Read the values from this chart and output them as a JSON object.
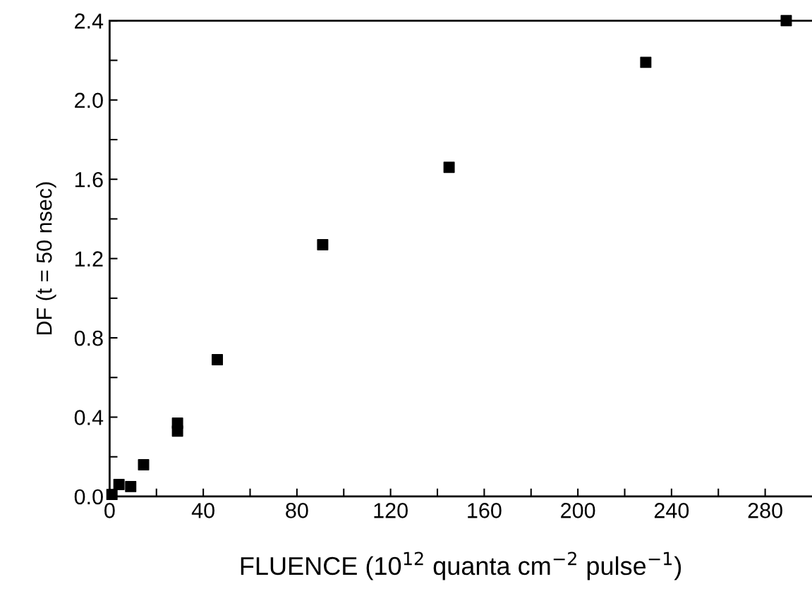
{
  "chart_data": {
    "type": "scatter",
    "xlabel": "FLUENCE (10$^{12}$ quanta cm$^{−2}$ pulse$^{−1}$)",
    "ylabel": "DF (t = 50 nsec)",
    "x": [
      1,
      4,
      9,
      14.5,
      29,
      29,
      46,
      91,
      145,
      229,
      289
    ],
    "values": [
      0.01,
      0.06,
      0.05,
      0.16,
      0.37,
      0.33,
      0.69,
      1.27,
      1.66,
      2.19,
      2.4
    ],
    "color": "#000000",
    "marker": "square",
    "xlim": [
      0,
      300
    ],
    "xticks": [
      0,
      {
        "value": 20,
        "label": null
      },
      40,
      {
        "value": 60,
        "label": null
      },
      80,
      {
        "value": 100,
        "label": null
      },
      120,
      {
        "value": 140,
        "label": null
      },
      160,
      {
        "value": 180,
        "label": null
      },
      200,
      {
        "value": 220,
        "label": null
      },
      240,
      {
        "value": 260,
        "label": null
      },
      280
    ],
    "ylim": [
      0,
      2.4
    ],
    "yticks": [
      {
        "value": 0,
        "label": "0.0"
      },
      {
        "value": 0.2,
        "label": null
      },
      0.4,
      {
        "value": 0.6,
        "label": null
      },
      0.8,
      {
        "value": 1,
        "label": null
      },
      1.2,
      {
        "value": 1.4,
        "label": null
      },
      1.6,
      {
        "value": 1.8,
        "label": null
      },
      {
        "value": 2,
        "label": "2.0"
      },
      {
        "value": 2.2,
        "label": null
      },
      2.4
    ],
    "grid": false,
    "legend": false
  }
}
